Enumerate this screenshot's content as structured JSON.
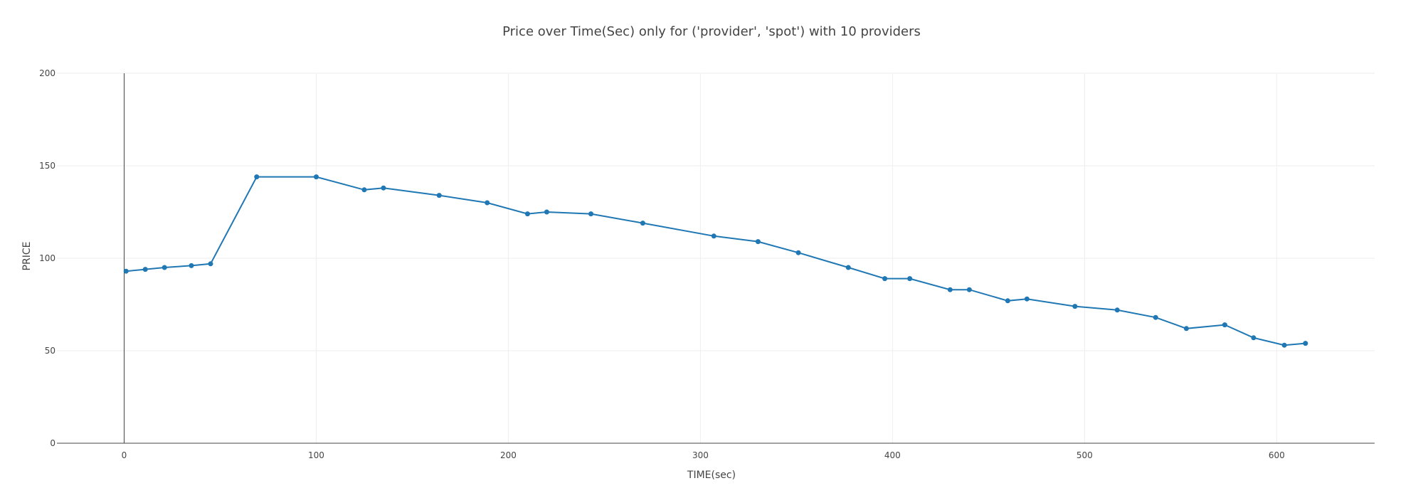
{
  "chart_data": {
    "type": "line",
    "title": "Price over Time(Sec) only for ('provider', 'spot') with 10 providers",
    "xlabel": "TIME(sec)",
    "ylabel": "PRICE",
    "xlim": [
      -35,
      651
    ],
    "ylim": [
      0,
      200
    ],
    "xticks": [
      0,
      100,
      200,
      300,
      400,
      500,
      600
    ],
    "yticks": [
      0,
      50,
      100,
      150,
      200
    ],
    "grid": true,
    "legend": "none",
    "series": [
      {
        "color": "#1f77b4",
        "x": [
          1,
          11,
          21,
          35,
          45,
          69,
          100,
          125,
          135,
          164,
          189,
          210,
          220,
          243,
          270,
          307,
          330,
          351,
          377,
          396,
          409,
          430,
          440,
          460,
          470,
          495,
          517,
          537,
          553,
          573,
          588,
          604,
          615
        ],
        "y": [
          93,
          94,
          95,
          96,
          97,
          144,
          144,
          137,
          138,
          134,
          130,
          124,
          125,
          124,
          119,
          112,
          109,
          103,
          95,
          89,
          89,
          83,
          83,
          77,
          78,
          74,
          72,
          68,
          62,
          64,
          57,
          53,
          54
        ]
      }
    ]
  }
}
